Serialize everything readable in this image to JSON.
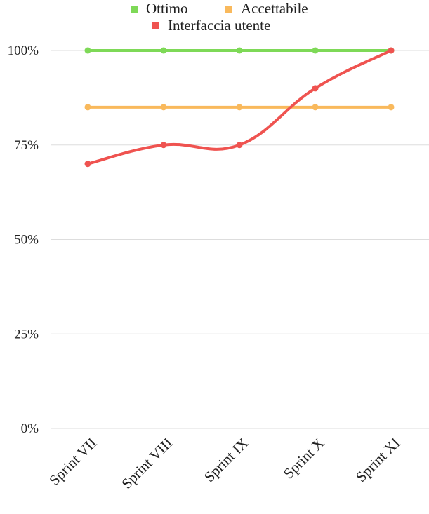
{
  "chart_data": {
    "type": "line",
    "categories": [
      "Sprint VII",
      "Sprint VIII",
      "Sprint IX",
      "Sprint X",
      "Sprint XI"
    ],
    "series": [
      {
        "name": "Ottimo",
        "values": [
          100,
          100,
          100,
          100,
          100
        ],
        "color": "#7ed957",
        "smooth": false
      },
      {
        "name": "Accettabile",
        "values": [
          85,
          85,
          85,
          85,
          85
        ],
        "color": "#f9b95c",
        "smooth": false
      },
      {
        "name": "Interfaccia utente",
        "values": [
          70,
          75,
          75,
          90,
          100
        ],
        "color": "#ef5350",
        "smooth": true
      }
    ],
    "y_ticks": [
      0,
      25,
      50,
      75,
      100
    ],
    "y_tick_labels": [
      "0%",
      "25%",
      "50%",
      "75%",
      "100%"
    ],
    "ylim": [
      0,
      100
    ],
    "grid": true,
    "legend_position": "top-center",
    "grid_color": "#dddddd",
    "text_color": "#222222"
  }
}
